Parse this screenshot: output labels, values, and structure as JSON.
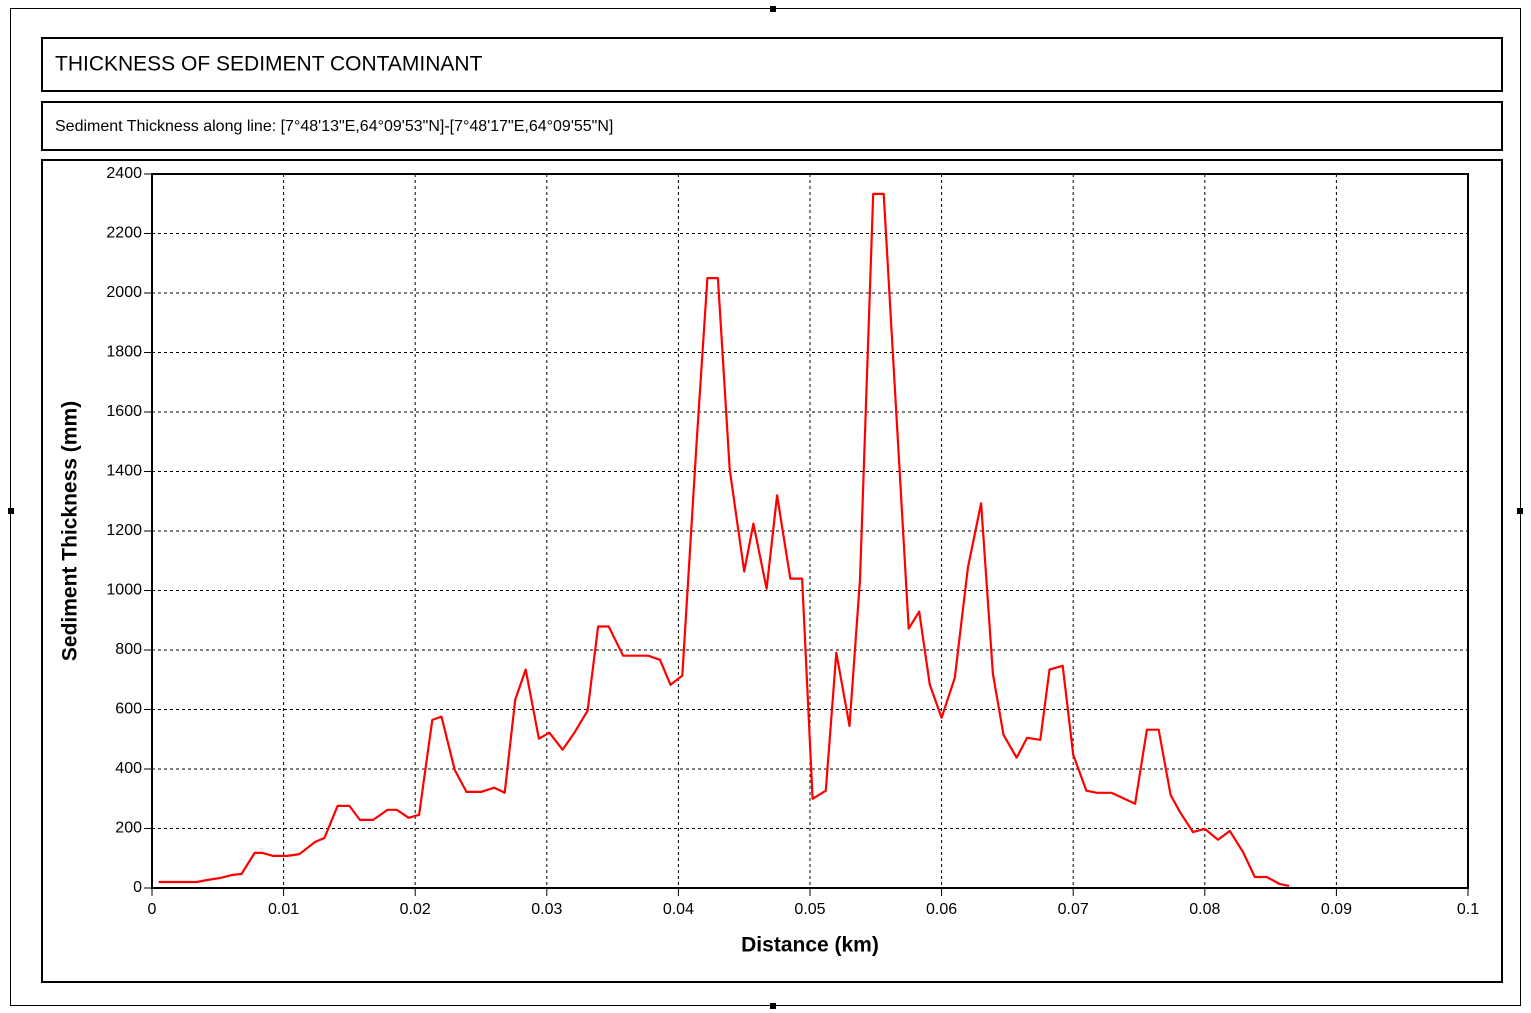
{
  "chart_data": {
    "type": "line",
    "title": "THICKNESS OF SEDIMENT CONTAMINANT",
    "subtitle": "Sediment Thickness along line: [7°48'13\"E,64°09'53\"N]-[7°48'17\"E,64°09'55\"N]",
    "xlabel": "Distance (km)",
    "ylabel": "Sediment Thickness (mm)",
    "color": "#ff0000",
    "grid": true,
    "xlim": [
      0,
      0.1
    ],
    "ylim": [
      0,
      2400
    ],
    "xticks": [
      0,
      0.01,
      0.02,
      0.03,
      0.04,
      0.05,
      0.06,
      0.07,
      0.08,
      0.09,
      0.1
    ],
    "yticks": [
      0,
      200,
      400,
      600,
      800,
      1000,
      1200,
      1400,
      1600,
      1800,
      2000,
      2200,
      2400
    ],
    "x": [
      0.0005,
      0.0034,
      0.0042,
      0.0052,
      0.0061,
      0.0068,
      0.0078,
      0.0084,
      0.0092,
      0.0103,
      0.0112,
      0.0124,
      0.0131,
      0.0141,
      0.015,
      0.0158,
      0.0168,
      0.0179,
      0.0186,
      0.0195,
      0.0203,
      0.0213,
      0.022,
      0.023,
      0.0239,
      0.025,
      0.026,
      0.0268,
      0.0276,
      0.0284,
      0.0294,
      0.0302,
      0.0312,
      0.0321,
      0.0331,
      0.0339,
      0.0347,
      0.0358,
      0.0377,
      0.0386,
      0.0394,
      0.0403,
      0.0414,
      0.0422,
      0.043,
      0.0439,
      0.045,
      0.0457,
      0.0467,
      0.0475,
      0.0485,
      0.0494,
      0.0502,
      0.0512,
      0.052,
      0.053,
      0.0538,
      0.0548,
      0.0556,
      0.0565,
      0.0575,
      0.0583,
      0.0591,
      0.06,
      0.061,
      0.062,
      0.063,
      0.0639,
      0.0647,
      0.0657,
      0.0665,
      0.0675,
      0.0682,
      0.0692,
      0.07,
      0.071,
      0.0718,
      0.0729,
      0.0747,
      0.0756,
      0.0765,
      0.0774,
      0.0781,
      0.0791,
      0.08,
      0.081,
      0.0819,
      0.0829,
      0.0838,
      0.0847,
      0.0857,
      0.0864
    ],
    "values": [
      20,
      20,
      27,
      34,
      44,
      47,
      118,
      118,
      108,
      108,
      114,
      155,
      168,
      276,
      276,
      229,
      229,
      263,
      263,
      236,
      246,
      565,
      576,
      397,
      323,
      323,
      337,
      320,
      633,
      734,
      502,
      522,
      465,
      522,
      596,
      879,
      879,
      781,
      781,
      767,
      683,
      714,
      1508,
      2050,
      2050,
      1407,
      1064,
      1225,
      1006,
      1320,
      1040,
      1040,
      300,
      327,
      791,
      545,
      1037,
      2333,
      2333,
      1643,
      872,
      929,
      683,
      572,
      707,
      1077,
      1293,
      720,
      515,
      438,
      505,
      498,
      734,
      747,
      448,
      327,
      320,
      320,
      283,
      532,
      532,
      313,
      256,
      188,
      199,
      162,
      192,
      121,
      37,
      37,
      13,
      7
    ]
  }
}
